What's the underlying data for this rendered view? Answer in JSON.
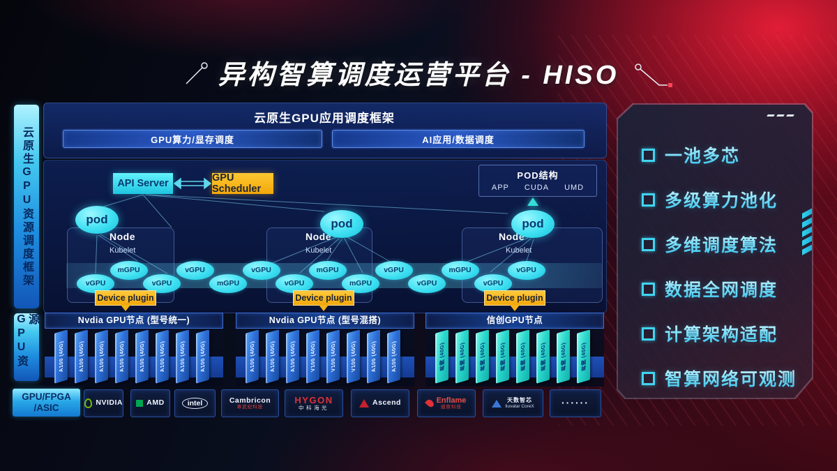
{
  "title": "异构智算调度运营平台 - HISO",
  "sidebar": {
    "framework_label": "云原生GPU资源调度框架",
    "gpu_resource_label": "GPU资源",
    "hardware_lines": [
      "GPU/FPGA",
      "/ASIC"
    ]
  },
  "app_framework": {
    "title": "云原生GPU应用调度框架",
    "left_bar": "GPU算力/显存调度",
    "right_bar": "AI应用/数据调度"
  },
  "scheduler": {
    "api_server": "API Server",
    "gpu_scheduler": "GPU Scheduler"
  },
  "pod_structure": {
    "title": "POD结构",
    "items": [
      "APP",
      "CUDA",
      "UMD"
    ]
  },
  "clusters": [
    {
      "pod": "pod",
      "node": "Node",
      "kubelet": "Kubelet",
      "device_plugin": "Device plugin"
    },
    {
      "pod": "pod",
      "node": "Node",
      "kubelet": "Kubelet",
      "device_plugin": "Device plugin"
    },
    {
      "pod": "pod",
      "node": "Node",
      "kubelet": "Kubelet",
      "device_plugin": "Device plugin"
    }
  ],
  "gpu_band": {
    "labels": [
      "vGPU",
      "mGPU",
      "vGPU",
      "vGPU",
      "mGPU",
      "vGPU",
      "vGPU",
      "mGPU",
      "mGPU",
      "vGPU",
      "vGPU",
      "mGPU",
      "vGPU",
      "vGPU"
    ]
  },
  "gpu_groups": [
    {
      "title": "Nvdia GPU节点 (型号统一)",
      "style": "blue",
      "cards": [
        "A100 (40G)",
        "A100 (40G)",
        "A100 (40G)",
        "A100 (40G)",
        "A100 (40G)",
        "A100 (40G)",
        "A100 (40G)",
        "A100 (40G)"
      ]
    },
    {
      "title": "Nvdia GPU节点 (型号混搭)",
      "style": "blue",
      "cards": [
        "A100 (40G)",
        "A100 (40G)",
        "A100 (40G)",
        "V100 (40G)",
        "V100 (40G)",
        "V100 (40G)",
        "A100 (40G)",
        "A100 (40G)"
      ]
    },
    {
      "title": "信创GPU节点",
      "style": "teal",
      "cards": [
        "昇腾 (40G)",
        "昇腾 (40G)",
        "昇腾 (40G)",
        "昇腾 (40G)",
        "昇腾 (40G)",
        "昇腾 (40G)",
        "昇腾 (40G)",
        "昇腾 (40G)"
      ]
    }
  ],
  "vendors": [
    {
      "logo": "nvidia",
      "lines": [
        "NVIDIA"
      ]
    },
    {
      "logo": "amd",
      "lines": [
        "AMD"
      ]
    },
    {
      "logo": "intel",
      "lines": [
        "intel"
      ]
    },
    {
      "logo": "cambricon",
      "lines": [
        "Cambricon",
        "寒武纪科技"
      ]
    },
    {
      "logo": "hygon",
      "lines": [
        "HYGON",
        "中科海光"
      ]
    },
    {
      "logo": "ascend",
      "lines": [
        "Ascend"
      ]
    },
    {
      "logo": "enflame",
      "lines": [
        "Enflame",
        "燧原科技"
      ]
    },
    {
      "logo": "iluvatar",
      "lines": [
        "天数智芯",
        "Iluvatar CoreX"
      ]
    },
    {
      "logo": "dots",
      "lines": [
        "······"
      ]
    }
  ],
  "features": {
    "items": [
      "一池多芯",
      "多级算力池化",
      "多维调度算法",
      "数据全网调度",
      "计算架构适配",
      "智算网络可观测"
    ]
  },
  "colors": {
    "accent_cyan": "#35dff2",
    "accent_yellow": "#f5b31a",
    "card_blue": "#2e6fd8",
    "card_teal": "#2bd8cc",
    "nvidia_green": "#76b900",
    "amd_green": "#00a651",
    "brand_red": "#e03038",
    "iluvatar_blue": "#3a78d8"
  }
}
